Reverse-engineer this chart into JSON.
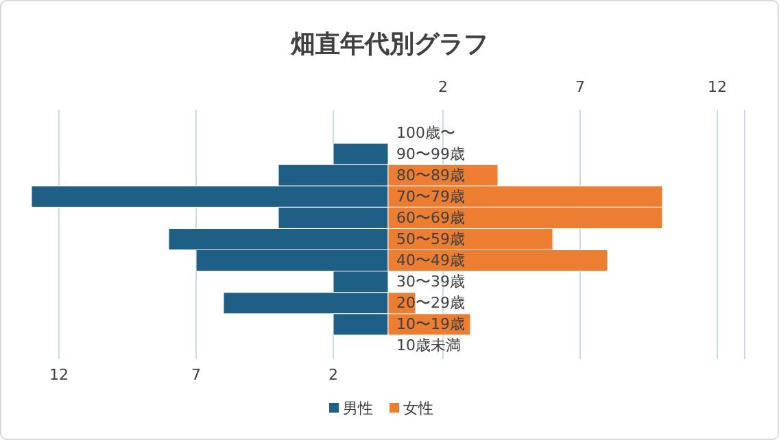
{
  "chart_data": {
    "type": "bar",
    "orientation": "horizontal",
    "stacked": true,
    "title": "畑直年代別グラフ",
    "categories": [
      "100歳〜",
      "90〜99歳",
      "80〜89歳",
      "70〜79歳",
      "60〜69歳",
      "50〜59歳",
      "40〜49歳",
      "30〜39歳",
      "20〜29歳",
      "10〜19歳",
      "10歳未満"
    ],
    "series": [
      {
        "name": "男性",
        "color": "#1f5f85",
        "values": [
          0,
          -2,
          -4,
          -13,
          -4,
          -8,
          -7,
          -2,
          -6,
          -2,
          0
        ]
      },
      {
        "name": "女性",
        "color": "#ed7d31",
        "values": [
          0,
          0,
          4,
          10,
          10,
          6,
          8,
          0,
          1,
          3,
          0
        ]
      }
    ],
    "xlim": [
      -13,
      13
    ],
    "xticks": [
      {
        "value": -12,
        "label": "12"
      },
      {
        "value": -7,
        "label": "7"
      },
      {
        "value": -2,
        "label": "2"
      }
    ],
    "x2lim": [
      -13,
      13
    ],
    "x2ticks": [
      2,
      7,
      12
    ],
    "grid": "x",
    "legend": "bottom"
  }
}
